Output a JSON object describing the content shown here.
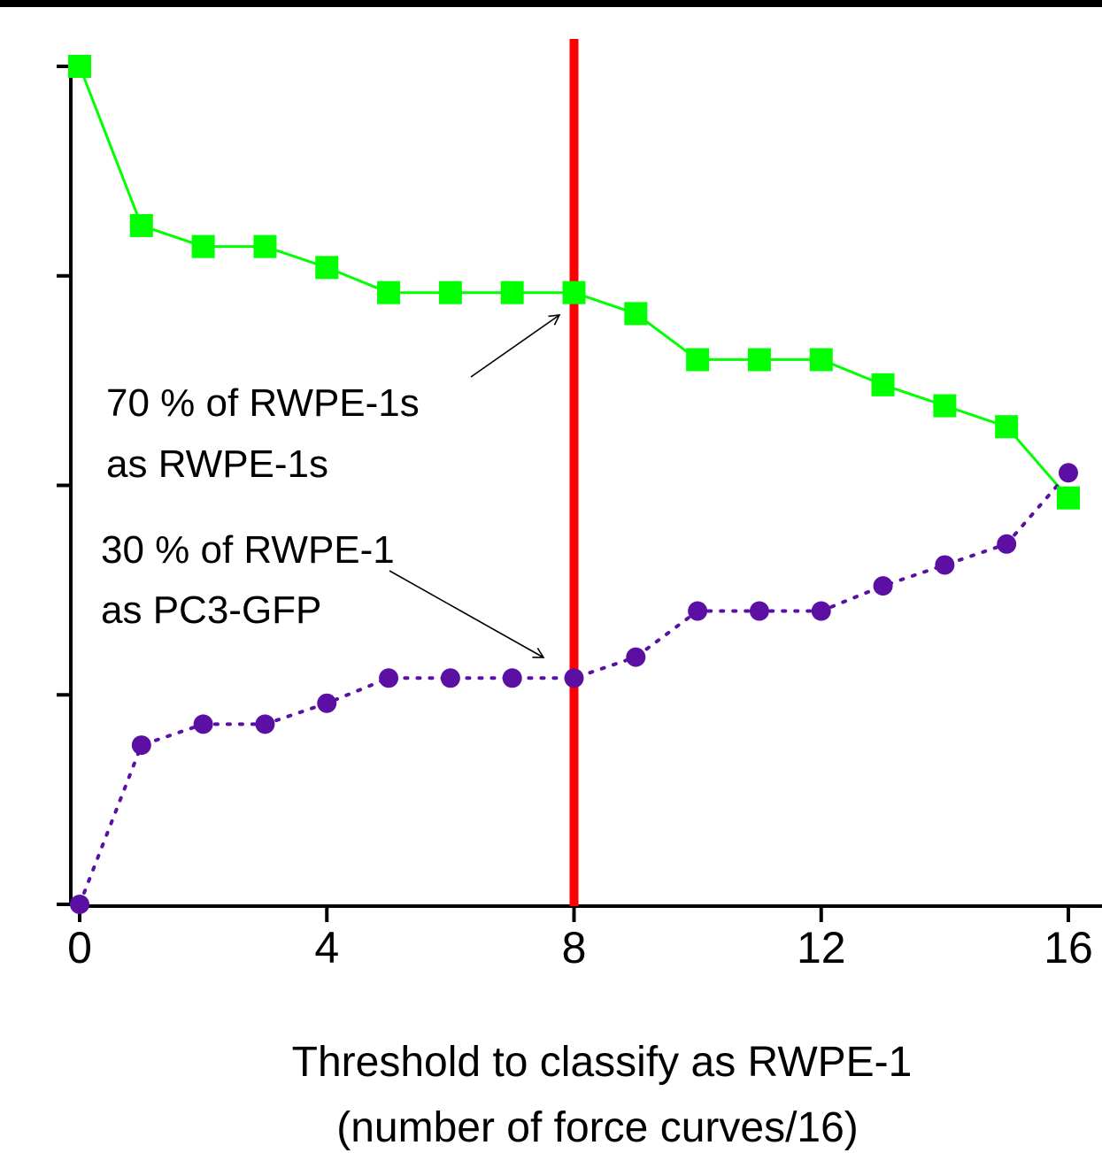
{
  "chart_data": {
    "type": "line",
    "title": "",
    "xlabel": [
      "Threshold to classify as RWPE-1",
      "(number of force curves/16)"
    ],
    "ylabel": "",
    "x": [
      0,
      1,
      2,
      3,
      4,
      5,
      6,
      7,
      8,
      9,
      10,
      11,
      12,
      13,
      14,
      15,
      16
    ],
    "xlim": [
      0,
      16
    ],
    "ylim": [
      0,
      100
    ],
    "xticks": [
      0,
      4,
      8,
      12,
      16
    ],
    "xtick_labels": [
      "0",
      "4",
      "8",
      "12",
      "16"
    ],
    "yticks": [
      0,
      25,
      50,
      75,
      100
    ],
    "ytick_labels": [
      "",
      "",
      "",
      "",
      ""
    ],
    "grid": false,
    "legend": "none",
    "series": [
      {
        "marker": "square",
        "line_style": "solid",
        "color": "#00ff00",
        "values": [
          100,
          81,
          78.5,
          78.5,
          76,
          73,
          73,
          73,
          73,
          70.5,
          65,
          65,
          65,
          62,
          59.5,
          57,
          48.5
        ]
      },
      {
        "marker": "circle",
        "line_style": "dotted",
        "color": "#5b0fa3",
        "values": [
          0,
          19,
          21.5,
          21.5,
          24,
          27,
          27,
          27,
          27,
          29.5,
          35,
          35,
          35,
          38,
          40.5,
          43,
          51.5
        ]
      }
    ],
    "threshold_line": {
      "x": 8,
      "color": "#ff0000"
    },
    "annotations": [
      {
        "lines": [
          "70 % of RWPE-1s",
          "as RWPE-1s"
        ],
        "points_to": {
          "x": 8,
          "y": 72
        }
      },
      {
        "lines": [
          "30 % of RWPE-1",
          "as PC3-GFP"
        ],
        "points_to": {
          "x": 8,
          "y": 29
        }
      }
    ]
  }
}
